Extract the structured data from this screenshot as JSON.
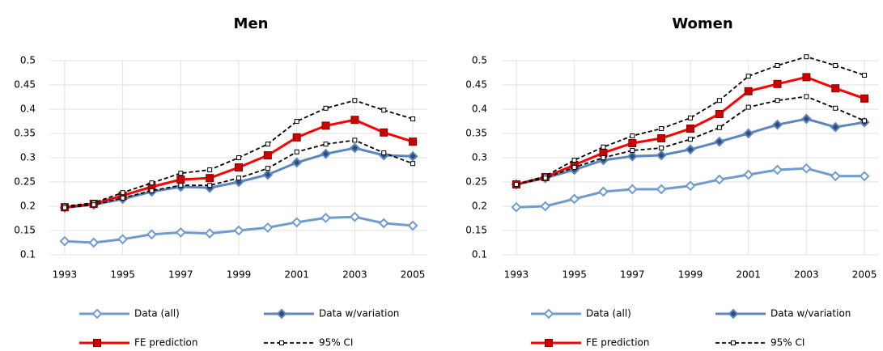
{
  "chart_data": [
    {
      "type": "line",
      "title": "Men",
      "x": [
        1993,
        1994,
        1995,
        1996,
        1997,
        1998,
        1999,
        2000,
        2001,
        2002,
        2003,
        2004,
        2005
      ],
      "xlim": [
        1992.5,
        2005.5
      ],
      "xticks": [
        1993,
        1995,
        1997,
        1999,
        2001,
        2003,
        2005
      ],
      "ylim": [
        0.1,
        0.5
      ],
      "yticks": [
        0.1,
        0.15,
        0.2,
        0.25,
        0.3,
        0.35,
        0.4,
        0.45,
        0.5
      ],
      "grid": true,
      "legend": "bottom",
      "series": [
        {
          "name": "Data (all)",
          "color": "#6f9bd1",
          "marker": "diamond",
          "marker_fill": "#ffffff",
          "values": [
            0.128,
            0.125,
            0.132,
            0.142,
            0.146,
            0.144,
            0.15,
            0.156,
            0.167,
            0.176,
            0.178,
            0.165,
            0.16
          ]
        },
        {
          "name": "Data w/variation",
          "color": "#5b86c0",
          "marker": "diamond",
          "marker_fill": "#2f4b7c",
          "values": [
            0.197,
            0.203,
            0.215,
            0.23,
            0.24,
            0.238,
            0.25,
            0.265,
            0.29,
            0.308,
            0.32,
            0.305,
            0.303
          ]
        },
        {
          "name": "FE prediction",
          "color": "#ff0000",
          "marker": "square",
          "marker_fill": "#cc0000",
          "values": [
            0.198,
            0.205,
            0.222,
            0.24,
            0.255,
            0.258,
            0.28,
            0.305,
            0.342,
            0.366,
            0.378,
            0.352,
            0.333
          ]
        },
        {
          "name": "95% CI",
          "color": "#000000",
          "marker": "square",
          "marker_fill": "#ffffff",
          "dash": true,
          "values": [
            0.2,
            0.207,
            0.228,
            0.248,
            0.268,
            0.275,
            0.3,
            0.328,
            0.375,
            0.402,
            0.418,
            0.398,
            0.38
          ],
          "values_lower": [
            0.197,
            0.203,
            0.217,
            0.232,
            0.243,
            0.243,
            0.258,
            0.278,
            0.312,
            0.328,
            0.336,
            0.31,
            0.288
          ]
        }
      ]
    },
    {
      "type": "line",
      "title": "Women",
      "x": [
        1993,
        1994,
        1995,
        1996,
        1997,
        1998,
        1999,
        2000,
        2001,
        2002,
        2003,
        2004,
        2005
      ],
      "xlim": [
        1992.5,
        2005.5
      ],
      "xticks": [
        1993,
        1995,
        1997,
        1999,
        2001,
        2003,
        2005
      ],
      "ylim": [
        0.1,
        0.5
      ],
      "yticks": [
        0.1,
        0.15,
        0.2,
        0.25,
        0.3,
        0.35,
        0.4,
        0.45,
        0.5
      ],
      "grid": true,
      "legend": "bottom",
      "series": [
        {
          "name": "Data (all)",
          "color": "#6f9bd1",
          "marker": "diamond",
          "marker_fill": "#ffffff",
          "values": [
            0.198,
            0.2,
            0.215,
            0.23,
            0.235,
            0.235,
            0.242,
            0.255,
            0.265,
            0.275,
            0.278,
            0.262,
            0.262
          ]
        },
        {
          "name": "Data w/variation",
          "color": "#5b86c0",
          "marker": "diamond",
          "marker_fill": "#2f4b7c",
          "values": [
            0.245,
            0.258,
            0.275,
            0.295,
            0.303,
            0.305,
            0.317,
            0.333,
            0.35,
            0.368,
            0.38,
            0.363,
            0.373
          ]
        },
        {
          "name": "FE prediction",
          "color": "#ff0000",
          "marker": "square",
          "marker_fill": "#cc0000",
          "values": [
            0.245,
            0.26,
            0.285,
            0.31,
            0.33,
            0.34,
            0.36,
            0.39,
            0.437,
            0.452,
            0.466,
            0.443,
            0.422
          ]
        },
        {
          "name": "95% CI",
          "color": "#000000",
          "marker": "square",
          "marker_fill": "#ffffff",
          "dash": true,
          "values": [
            0.245,
            0.262,
            0.295,
            0.322,
            0.345,
            0.36,
            0.382,
            0.418,
            0.468,
            0.49,
            0.508,
            0.49,
            0.47
          ],
          "values_lower": [
            0.245,
            0.258,
            0.28,
            0.3,
            0.315,
            0.32,
            0.338,
            0.362,
            0.404,
            0.418,
            0.426,
            0.402,
            0.376
          ]
        }
      ]
    }
  ]
}
